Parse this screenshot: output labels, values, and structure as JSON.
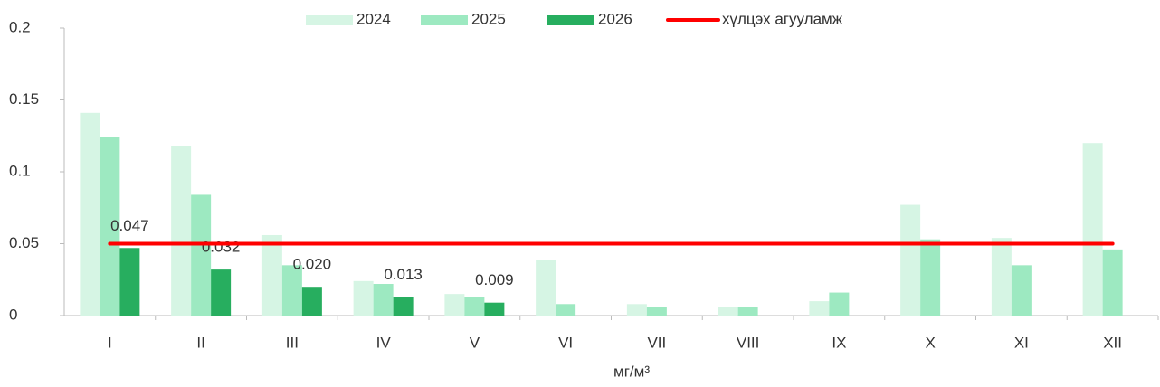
{
  "chart_data": {
    "type": "bar",
    "categories": [
      "I",
      "II",
      "III",
      "IV",
      "V",
      "VI",
      "VII",
      "VIII",
      "IX",
      "X",
      "XI",
      "XII"
    ],
    "series": [
      {
        "name": "2024",
        "color": "#d6f5e4",
        "values": [
          0.141,
          0.118,
          0.056,
          0.024,
          0.015,
          0.039,
          0.008,
          0.006,
          0.01,
          0.077,
          0.054,
          0.12
        ]
      },
      {
        "name": "2025",
        "color": "#9de9c1",
        "values": [
          0.124,
          0.084,
          0.035,
          0.022,
          0.013,
          0.008,
          0.006,
          0.006,
          0.016,
          0.053,
          0.035,
          0.046
        ]
      },
      {
        "name": "2026",
        "color": "#27ae5f",
        "values": [
          0.047,
          0.032,
          0.02,
          0.013,
          0.009,
          null,
          null,
          null,
          null,
          null,
          null,
          null
        ],
        "value_labels": [
          "0.047",
          "0.032",
          "0.020",
          "0.013",
          "0.009",
          null,
          null,
          null,
          null,
          null,
          null,
          null
        ]
      },
      {
        "name": "хүлцэх агууламж",
        "type": "line",
        "color": "#ff0000",
        "values": [
          0.05,
          0.05,
          0.05,
          0.05,
          0.05,
          0.05,
          0.05,
          0.05,
          0.05,
          0.05,
          0.05,
          0.05
        ]
      }
    ],
    "x_label": "мг/м³",
    "ylim": [
      0,
      0.2
    ],
    "yticks": [
      0,
      0.05,
      0.1,
      0.15,
      0.2
    ],
    "grid": false,
    "legend": "top"
  }
}
